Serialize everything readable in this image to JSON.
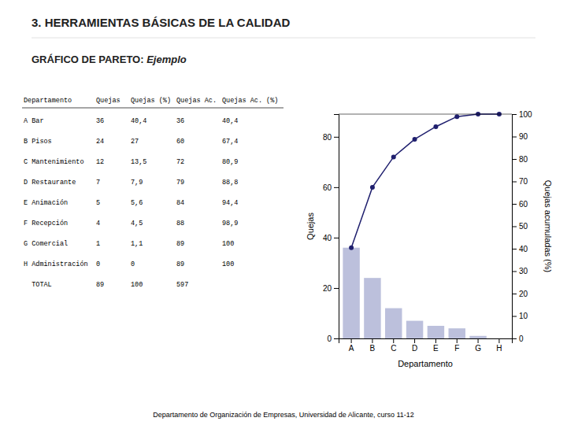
{
  "chart_data": {
    "type": "bar",
    "title": "3. HERRAMIENTAS BÁSICAS DE LA CALIDAD",
    "subtitle": [
      "GRÁFICO DE PARETO: ",
      "Ejemplo"
    ],
    "categories": [
      "A",
      "B",
      "C",
      "D",
      "E",
      "F",
      "G",
      "H"
    ],
    "series": [
      {
        "type": "bar",
        "color": "#bcc0dc",
        "values": [
          36,
          24,
          12,
          7,
          5,
          4,
          1,
          0
        ]
      },
      {
        "type": "line",
        "axis": "y2",
        "color": "#1f1f6e",
        "marker": "circle",
        "values": [
          40.4,
          67.4,
          80.9,
          88.8,
          94.4,
          98.9,
          100.0,
          100.0
        ]
      }
    ],
    "xlabel": "Departamento",
    "ylabel": "Quejas",
    "y2label": "Quejas acumuladas (%)",
    "ylim": [
      0,
      89
    ],
    "yticks": [
      0,
      20,
      40,
      60,
      80
    ],
    "y2lim": [
      0,
      100
    ],
    "y2ticks": [
      0,
      10,
      20,
      30,
      40,
      50,
      60,
      70,
      80,
      90,
      100
    ],
    "grid": false,
    "table": {
      "headers": [
        "Departamento",
        "Quejas",
        "Quejas (%)",
        "Quejas Ac.",
        "Quejas Ac. (%)"
      ],
      "columns": [
        [
          "A Bar",
          "B Pisos",
          "C Mantenimiento",
          "D Restaurante",
          "E Animación",
          "F Recepción",
          "G Comercial",
          "H Administración",
          "  TOTAL"
        ],
        [
          36,
          24,
          12,
          7,
          5,
          4,
          1,
          0,
          89
        ],
        [
          "40,4",
          "27",
          "13,5",
          "7,9",
          "5,6",
          "4,5",
          "1,1",
          "0",
          "100"
        ],
        [
          36,
          60,
          72,
          79,
          84,
          88,
          89,
          89,
          597
        ],
        [
          "40,4",
          "67,4",
          "80,9",
          "88,8",
          "94,4",
          "98,9",
          "100",
          "100",
          null
        ]
      ]
    },
    "footer": "Departamento de Organización de Empresas, Universidad de Alicante, curso 11-12"
  }
}
